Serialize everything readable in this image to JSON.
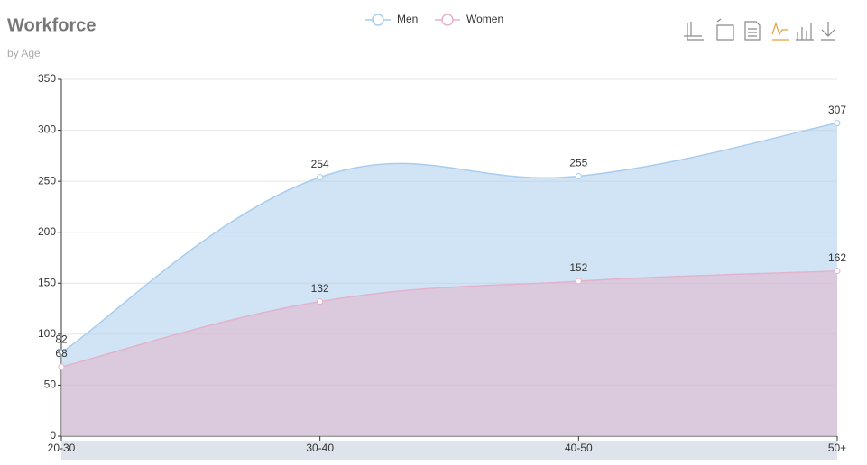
{
  "chart_data": {
    "type": "area",
    "title": "Workforce",
    "subtitle": "by Age",
    "categories": [
      "20-30",
      "30-40",
      "40-50",
      "50+"
    ],
    "series": [
      {
        "name": "Men",
        "color": "#a9cdee",
        "values": [
          82,
          254,
          255,
          307
        ]
      },
      {
        "name": "Women",
        "color": "#e3b3cb",
        "values": [
          68,
          132,
          152,
          162
        ]
      }
    ],
    "ylim": [
      0,
      350
    ],
    "yticks": [
      0,
      50,
      100,
      150,
      200,
      250,
      300,
      350
    ],
    "grid": true,
    "smooth": true,
    "legend": "top"
  }
}
